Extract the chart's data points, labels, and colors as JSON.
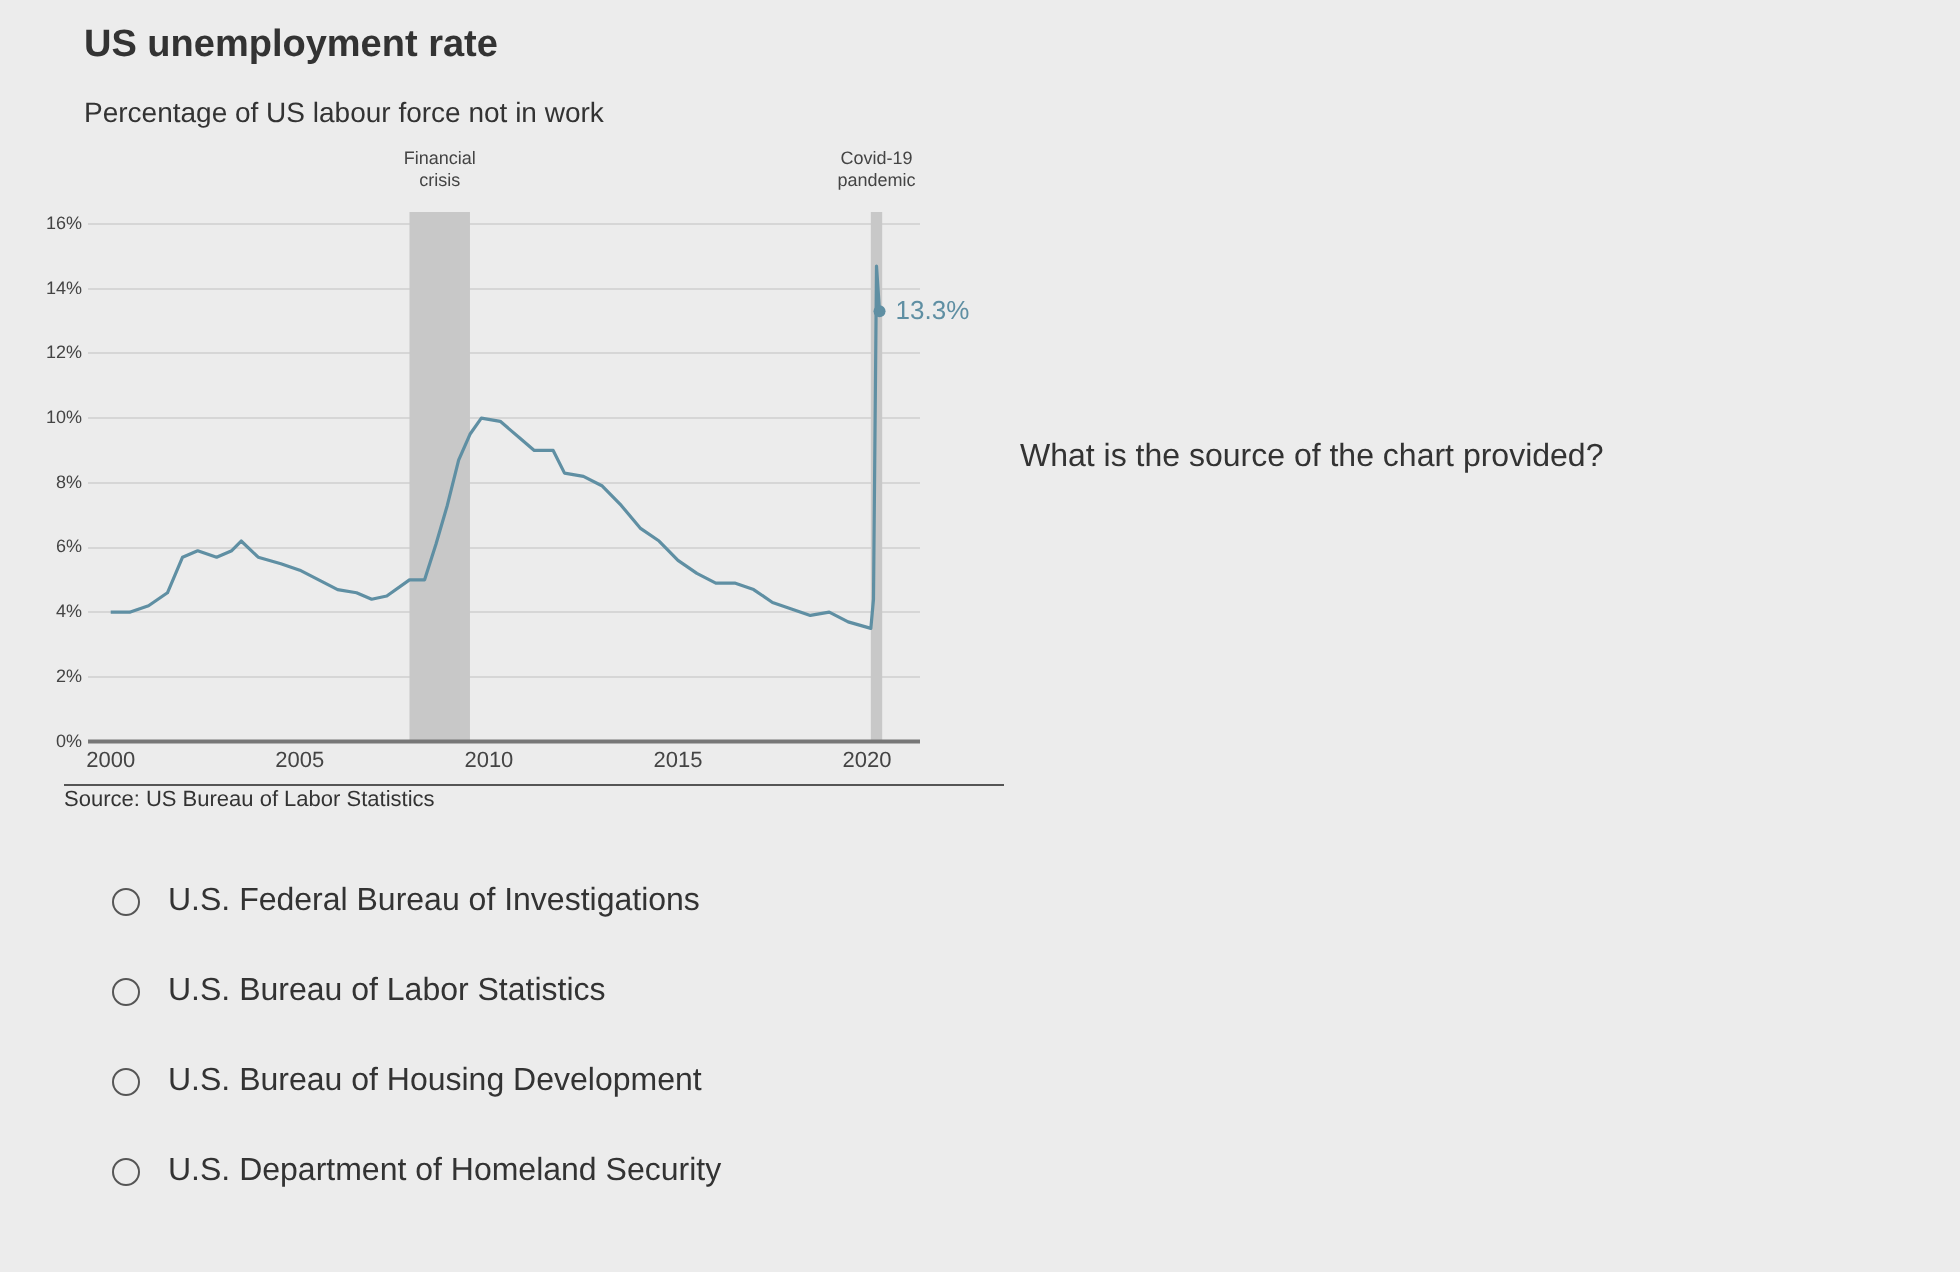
{
  "chart_data": {
    "type": "line",
    "title": "US unemployment rate",
    "subtitle": "Percentage of US labour force not in work",
    "x": [
      2000.0,
      2000.5,
      2001.0,
      2001.5,
      2001.9,
      2002.3,
      2002.8,
      2003.2,
      2003.45,
      2003.9,
      2004.5,
      2005.0,
      2005.5,
      2006.0,
      2006.5,
      2006.9,
      2007.3,
      2007.9,
      2008.3,
      2008.6,
      2008.9,
      2009.2,
      2009.5,
      2009.8,
      2010.3,
      2010.8,
      2011.2,
      2011.7,
      2012.0,
      2012.5,
      2013.0,
      2013.5,
      2014.0,
      2014.5,
      2015.0,
      2015.5,
      2016.0,
      2016.5,
      2017.0,
      2017.5,
      2018.0,
      2018.5,
      2019.0,
      2019.5,
      2020.1,
      2020.17,
      2020.25,
      2020.33
    ],
    "series": [
      {
        "color": "#5f8fa3",
        "values": [
          4.0,
          4.0,
          4.2,
          4.6,
          5.7,
          5.9,
          5.7,
          5.9,
          6.2,
          5.7,
          5.5,
          5.3,
          5.0,
          4.7,
          4.6,
          4.4,
          4.5,
          5.0,
          5.0,
          6.1,
          7.3,
          8.7,
          9.5,
          10.0,
          9.9,
          9.4,
          9.0,
          9.0,
          8.3,
          8.2,
          7.9,
          7.3,
          6.6,
          6.2,
          5.6,
          5.2,
          4.9,
          4.9,
          4.7,
          4.3,
          4.1,
          3.9,
          4.0,
          3.7,
          3.5,
          4.4,
          14.7,
          13.3
        ]
      }
    ],
    "xlim": [
      1999.4,
      2021.4
    ],
    "xticks": [
      2000,
      2005,
      2010,
      2015,
      2020
    ],
    "ylim": [
      0,
      16
    ],
    "yticks": [
      {
        "value": 0,
        "label": "0%"
      },
      {
        "value": 2,
        "label": "2%"
      },
      {
        "value": 4,
        "label": "4%"
      },
      {
        "value": 6,
        "label": "6%"
      },
      {
        "value": 8,
        "label": "8%"
      },
      {
        "value": 10,
        "label": "10%"
      },
      {
        "value": 12,
        "label": "12%"
      },
      {
        "value": 14,
        "label": "14%"
      },
      {
        "value": 16,
        "label": "16%"
      }
    ],
    "grid": "y",
    "legend": false,
    "bands": [
      {
        "axis": "x",
        "from": 2007.9,
        "to": 2009.5,
        "label": "Financial crisis",
        "color": "#c8c8c8"
      },
      {
        "axis": "x",
        "from": 2020.1,
        "to": 2020.4,
        "label": "Covid-19 pandemic",
        "color": "#c8c8c8"
      }
    ],
    "annotations": [
      {
        "text": "13.3%",
        "x": 2020.33,
        "y": 13.3
      },
      "Source: US Bureau of Labor Statistics",
      "What is the source of the chart provided?",
      "U.S. Federal Bureau of Investigations",
      "U.S. Bureau of Labor Statistics",
      "U.S. Bureau of Housing Development",
      "U.S. Department of Homeland Security"
    ]
  }
}
